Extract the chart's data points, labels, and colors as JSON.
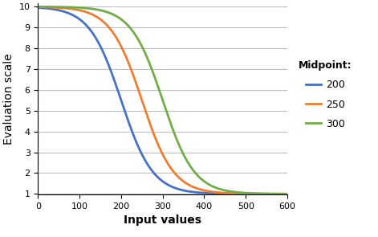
{
  "title": "",
  "xlabel": "Input values",
  "ylabel": "Evaluation scale",
  "xlim": [
    0,
    600
  ],
  "ylim": [
    1,
    10
  ],
  "yticks": [
    1,
    2,
    3,
    4,
    5,
    6,
    7,
    8,
    9,
    10
  ],
  "xticks": [
    0,
    100,
    200,
    300,
    400,
    500,
    600
  ],
  "curves": [
    {
      "midpoint": 200,
      "color": "#4472C4",
      "label": "200"
    },
    {
      "midpoint": 250,
      "color": "#ED7D31",
      "label": "250"
    },
    {
      "midpoint": 300,
      "color": "#70AD47",
      "label": "300"
    }
  ],
  "spread": 38,
  "y_min": 1,
  "y_max": 10,
  "legend_title": "Midpoint:",
  "legend_title_fontsize": 9,
  "legend_fontsize": 9,
  "axis_label_fontsize": 10,
  "tick_fontsize": 8,
  "background_color": "#FFFFFF",
  "grid_color": "#BFBFBF",
  "linewidth": 2.0
}
